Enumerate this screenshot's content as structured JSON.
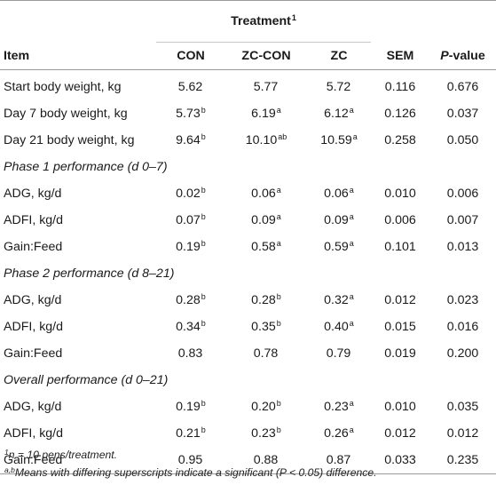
{
  "header": {
    "group_label": "Treatment",
    "group_sup": "1",
    "item_label": "Item",
    "col_con": "CON",
    "col_zccon": "ZC-CON",
    "col_zc": "ZC",
    "col_sem": "SEM",
    "col_p_italic": "P",
    "col_p_rest": "-value"
  },
  "rows": [
    {
      "item": "Start body weight, kg",
      "con": "5.62",
      "con_s": "",
      "zccon": "5.77",
      "zccon_s": "",
      "zc": "5.72",
      "zc_s": "",
      "sem": "0.116",
      "p": "0.676"
    },
    {
      "item": "Day 7 body weight, kg",
      "con": "5.73",
      "con_s": "b",
      "zccon": "6.19",
      "zccon_s": "a",
      "zc": "6.12",
      "zc_s": "a",
      "sem": "0.126",
      "p": "0.037"
    },
    {
      "item": "Day 21 body weight, kg",
      "con": "9.64",
      "con_s": "b",
      "zccon": "10.10",
      "zccon_s": "ab",
      "zc": "10.59",
      "zc_s": "a",
      "sem": "0.258",
      "p": "0.050"
    },
    {
      "section": "Phase 1 performance (d 0–7)"
    },
    {
      "item": "ADG, kg/d",
      "con": "0.02",
      "con_s": "b",
      "zccon": "0.06",
      "zccon_s": "a",
      "zc": "0.06",
      "zc_s": "a",
      "sem": "0.010",
      "p": "0.006"
    },
    {
      "item": "ADFI, kg/d",
      "con": "0.07",
      "con_s": "b",
      "zccon": "0.09",
      "zccon_s": "a",
      "zc": "0.09",
      "zc_s": "a",
      "sem": "0.006",
      "p": "0.007"
    },
    {
      "item": "Gain:Feed",
      "con": "0.19",
      "con_s": "b",
      "zccon": "0.58",
      "zccon_s": "a",
      "zc": "0.59",
      "zc_s": "a",
      "sem": "0.101",
      "p": "0.013"
    },
    {
      "section": "Phase 2 performance (d 8–21)"
    },
    {
      "item": "ADG, kg/d",
      "con": "0.28",
      "con_s": "b",
      "zccon": "0.28",
      "zccon_s": "b",
      "zc": "0.32",
      "zc_s": "a",
      "sem": "0.012",
      "p": "0.023"
    },
    {
      "item": "ADFI, kg/d",
      "con": "0.34",
      "con_s": "b",
      "zccon": "0.35",
      "zccon_s": "b",
      "zc": "0.40",
      "zc_s": "a",
      "sem": "0.015",
      "p": "0.016"
    },
    {
      "item": "Gain:Feed",
      "con": "0.83",
      "con_s": "",
      "zccon": "0.78",
      "zccon_s": "",
      "zc": "0.79",
      "zc_s": "",
      "sem": "0.019",
      "p": "0.200"
    },
    {
      "section": "Overall performance (d 0–21)"
    },
    {
      "item": "ADG, kg/d",
      "con": "0.19",
      "con_s": "b",
      "zccon": "0.20",
      "zccon_s": "b",
      "zc": "0.23",
      "zc_s": "a",
      "sem": "0.010",
      "p": "0.035"
    },
    {
      "item": "ADFI, kg/d",
      "con": "0.21",
      "con_s": "b",
      "zccon": "0.23",
      "zccon_s": "b",
      "zc": "0.26",
      "zc_s": "a",
      "sem": "0.012",
      "p": "0.012"
    },
    {
      "item": "Gain:Feed",
      "con": "0.95",
      "con_s": "",
      "zccon": "0.88",
      "zccon_s": "",
      "zc": "0.87",
      "zc_s": "",
      "sem": "0.033",
      "p": "0.235"
    }
  ],
  "footnotes": {
    "f1_sup": "1",
    "f1_text": "n = 10 pens/treatment.",
    "f2_sup": "a,b",
    "f2_text": "Means with differing superscripts indicate a significant (P < 0.05) difference."
  }
}
